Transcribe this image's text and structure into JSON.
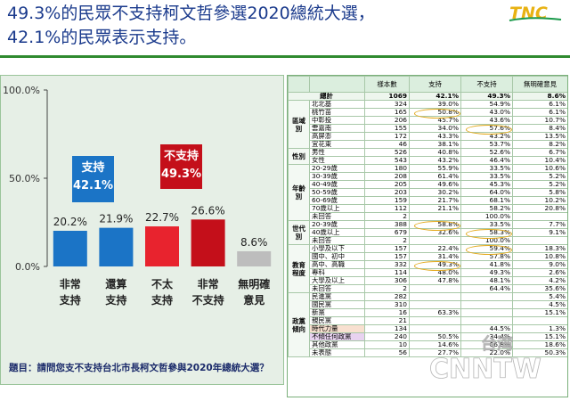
{
  "headline": {
    "line1": "49.3%的民眾不支持柯文哲參選2020總統大選，",
    "line2": "42.1%的民眾表示支持。"
  },
  "logo": {
    "text": "TNC",
    "colors": [
      "#e8b213",
      "#1c9a4c"
    ]
  },
  "chart_data": {
    "type": "bar",
    "categories": [
      "非常 支持",
      "還算 支持",
      "不太 支持",
      "非常 不支持",
      "無明確 意見"
    ],
    "category_lines": [
      [
        "非常",
        "支持"
      ],
      [
        "還算",
        "支持"
      ],
      [
        "不太",
        "支持"
      ],
      [
        "非常",
        "不支持"
      ],
      [
        "無明確",
        "意見"
      ]
    ],
    "values": [
      20.2,
      21.9,
      22.7,
      26.6,
      8.6
    ],
    "value_labels": [
      "20.2%",
      "21.9%",
      "22.7%",
      "26.6%",
      "8.6%"
    ],
    "colors": [
      "#1b74c6",
      "#1b74c6",
      "#e8232e",
      "#c40f1a",
      "#bdbdbd"
    ],
    "ylim": [
      0,
      100
    ],
    "yticks": [
      "0.0%",
      "50.0%",
      "100.0%"
    ],
    "ytick_values": [
      0,
      50,
      100
    ],
    "callouts": [
      {
        "label": "支持",
        "value": "42.1%",
        "color": "#1b74c6"
      },
      {
        "label": "不支持",
        "value": "49.3%",
        "color": "#c40f1a"
      }
    ],
    "question": "題目：請問您支不支持台北市長柯文哲參與2020年總統大選？"
  },
  "table": {
    "headers": [
      "",
      "",
      "樣本數",
      "支持",
      "不支持",
      "無明確意見"
    ],
    "total": {
      "label": "總計",
      "n": "1069",
      "support": "42.1%",
      "oppose": "49.3%",
      "none": "8.6%"
    },
    "groups": [
      {
        "name": "區域別",
        "rows": [
          [
            "北北基",
            "324",
            "39.0%",
            "54.9%",
            "6.1%"
          ],
          [
            "桃竹苗",
            "165",
            "50.8%",
            "43.0%",
            "6.1%"
          ],
          [
            "中彰投",
            "206",
            "45.7%",
            "43.6%",
            "10.7%"
          ],
          [
            "雲嘉南",
            "155",
            "34.0%",
            "57.6%",
            "8.4%"
          ],
          [
            "高屏澎",
            "172",
            "43.3%",
            "43.2%",
            "13.5%"
          ],
          [
            "宜花東",
            "46",
            "38.1%",
            "53.7%",
            "8.2%"
          ]
        ]
      },
      {
        "name": "性別",
        "rows": [
          [
            "男性",
            "526",
            "40.8%",
            "52.6%",
            "6.7%"
          ],
          [
            "女性",
            "543",
            "43.2%",
            "46.4%",
            "10.4%"
          ]
        ]
      },
      {
        "name": "年齡別",
        "rows": [
          [
            "20-29歲",
            "180",
            "55.9%",
            "33.5%",
            "10.6%"
          ],
          [
            "30-39歲",
            "208",
            "61.4%",
            "33.5%",
            "5.2%"
          ],
          [
            "40-49歲",
            "205",
            "49.6%",
            "45.3%",
            "5.2%"
          ],
          [
            "50-59歲",
            "203",
            "30.2%",
            "64.0%",
            "5.8%"
          ],
          [
            "60-69歲",
            "159",
            "21.7%",
            "68.1%",
            "10.2%"
          ],
          [
            "70歲以上",
            "112",
            "21.1%",
            "58.2%",
            "20.8%"
          ],
          [
            "未回答",
            "2",
            "",
            "100.0%",
            ""
          ]
        ]
      },
      {
        "name": "世代別",
        "rows": [
          [
            "20-39歲",
            "388",
            "58.8%",
            "33.5%",
            "7.7%"
          ],
          [
            "40歲以上",
            "679",
            "32.6%",
            "58.3%",
            "9.1%"
          ],
          [
            "未回答",
            "2",
            "",
            "100.0%",
            ""
          ]
        ]
      },
      {
        "name": "教育程度",
        "rows": [
          [
            "小學及以下",
            "157",
            "22.4%",
            "59.4%",
            "18.3%"
          ],
          [
            "國中、初中",
            "157",
            "31.4%",
            "57.8%",
            "10.8%"
          ],
          [
            "高中、高職",
            "332",
            "49.3%",
            "41.8%",
            "9.0%"
          ],
          [
            "專科",
            "114",
            "48.0%",
            "49.3%",
            "2.6%"
          ],
          [
            "大學及以上",
            "306",
            "47.8%",
            "48.1%",
            "4.2%"
          ],
          [
            "未回答",
            "2",
            "",
            "64.4%",
            "35.6%"
          ]
        ]
      },
      {
        "name": "政黨傾向",
        "rows": [
          [
            "民進黨",
            "282",
            "",
            "",
            "5.4%"
          ],
          [
            "國民黨",
            "310",
            "",
            "",
            "4.5%"
          ],
          [
            "新黨",
            "16",
            "63.3%",
            "",
            "15.1%"
          ],
          [
            "親民黨",
            "21",
            "",
            "",
            ""
          ],
          [
            "時代力量",
            "134",
            "",
            "44.5%",
            "1.3%"
          ],
          [
            "不傾任何政黨",
            "240",
            "50.5%",
            "34.4%",
            "15.1%"
          ],
          [
            "其他政黨",
            "10",
            "14.6%",
            "66.8%",
            "18.6%"
          ],
          [
            "未表態",
            "56",
            "27.7%",
            "22.0%",
            "50.3%"
          ]
        ]
      }
    ]
  },
  "watermark": {
    "text": "CNNTW",
    "sub": "台湾"
  }
}
